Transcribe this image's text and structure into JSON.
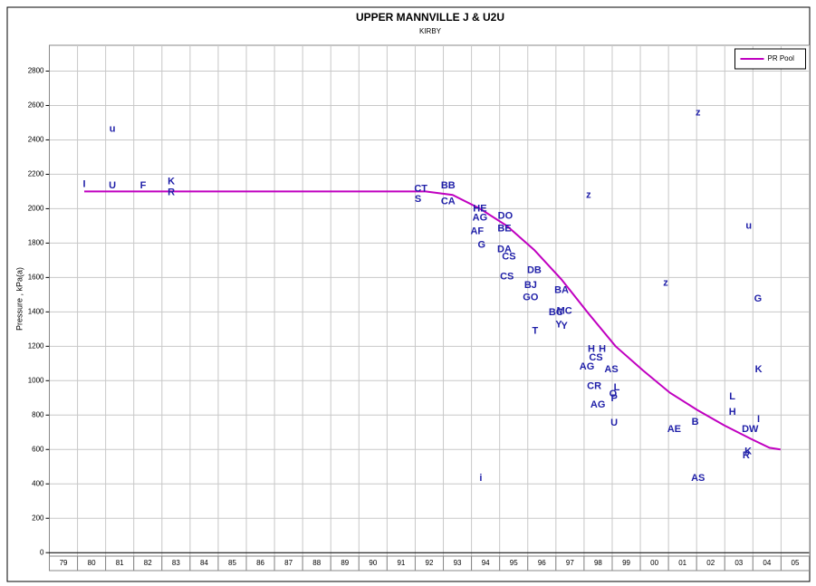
{
  "chart_data": {
    "type": "line",
    "title": "UPPER MANNVILLE J & U2U",
    "subtitle": "KIRBY",
    "ylabel": "Pressure , kPa(a)",
    "categories": [
      "79",
      "80",
      "81",
      "82",
      "83",
      "84",
      "85",
      "86",
      "87",
      "88",
      "89",
      "90",
      "91",
      "92",
      "93",
      "94",
      "95",
      "96",
      "97",
      "98",
      "99",
      "00",
      "01",
      "02",
      "03",
      "04",
      "05"
    ],
    "xlim": [
      1979,
      2006
    ],
    "ylim": [
      -20,
      2950
    ],
    "yticks": [
      0,
      200,
      400,
      600,
      800,
      1000,
      1200,
      1400,
      1600,
      1800,
      2000,
      2200,
      2400,
      2600,
      2800
    ],
    "grid": true,
    "legend": "top-right",
    "series": [
      {
        "name": "PR Pool",
        "color": "#c000c0",
        "x": [
          1980.24,
          1992.37,
          1993.33,
          1994.3,
          1995.26,
          1996.23,
          1997.19,
          1998.16,
          1999.12,
          2000.09,
          2001.05,
          2002.02,
          2002.98,
          2003.95,
          2004.59,
          2004.98
        ],
        "values": [
          2100,
          2100,
          2080,
          2000,
          1900,
          1760,
          1590,
          1390,
          1200,
          1060,
          930,
          830,
          740,
          660,
          610,
          600
        ]
      },
      {
        "type": "scatter",
        "color": "#1f1fa8",
        "labels": [
          "I",
          "u",
          "U",
          "F",
          "K",
          "R",
          "CT",
          "S",
          "BB",
          "CA",
          "HE",
          "AG",
          "AF",
          "G",
          "DO",
          "BE",
          "DA",
          "CS",
          "CS",
          "BJ",
          "DB",
          "GO",
          "T",
          "BA",
          "BC",
          "Y",
          "Y",
          "MC",
          "z",
          "H",
          "H",
          "CS",
          "AG",
          "AS",
          "CR",
          "L",
          "AG",
          "O",
          "P",
          "U",
          "i",
          "z",
          "AE",
          "B",
          "z",
          "AS",
          "L",
          "H",
          "DW",
          "u",
          "G",
          "K",
          "I",
          "K",
          "R"
        ],
        "x": [
          1980.24,
          1981.24,
          1981.24,
          1982.33,
          1983.33,
          1983.33,
          1992.2,
          1992.1,
          1993.17,
          1993.17,
          1994.3,
          1994.3,
          1994.2,
          1994.36,
          1995.2,
          1995.17,
          1995.17,
          1995.33,
          1995.26,
          1996.1,
          1996.23,
          1996.1,
          1996.26,
          1997.2,
          1997.0,
          1997.1,
          1997.3,
          1997.3,
          1998.16,
          1998.26,
          1998.65,
          1998.42,
          1998.1,
          1998.97,
          1998.36,
          1999.16,
          1998.49,
          1999.03,
          1999.07,
          1999.07,
          1994.33,
          2000.9,
          2001.2,
          2001.95,
          2002.05,
          2002.05,
          2003.27,
          2003.27,
          2003.9,
          2003.85,
          2004.18,
          2004.2,
          2004.2,
          2003.83,
          2003.76
        ],
        "values": [
          2142,
          2463,
          2132,
          2132,
          2158,
          2095,
          2116,
          2053,
          2132,
          2042,
          2000,
          1947,
          1868,
          1789,
          1958,
          1884,
          1763,
          1721,
          1605,
          1553,
          1642,
          1484,
          1289,
          1526,
          1395,
          1326,
          1316,
          1405,
          2079,
          1184,
          1184,
          1132,
          1079,
          1063,
          968,
          958,
          858,
          921,
          895,
          753,
          432,
          1568,
          716,
          758,
          2558,
          432,
          905,
          816,
          716,
          1900,
          1474,
          1063,
          774,
          589,
          563
        ]
      }
    ]
  }
}
